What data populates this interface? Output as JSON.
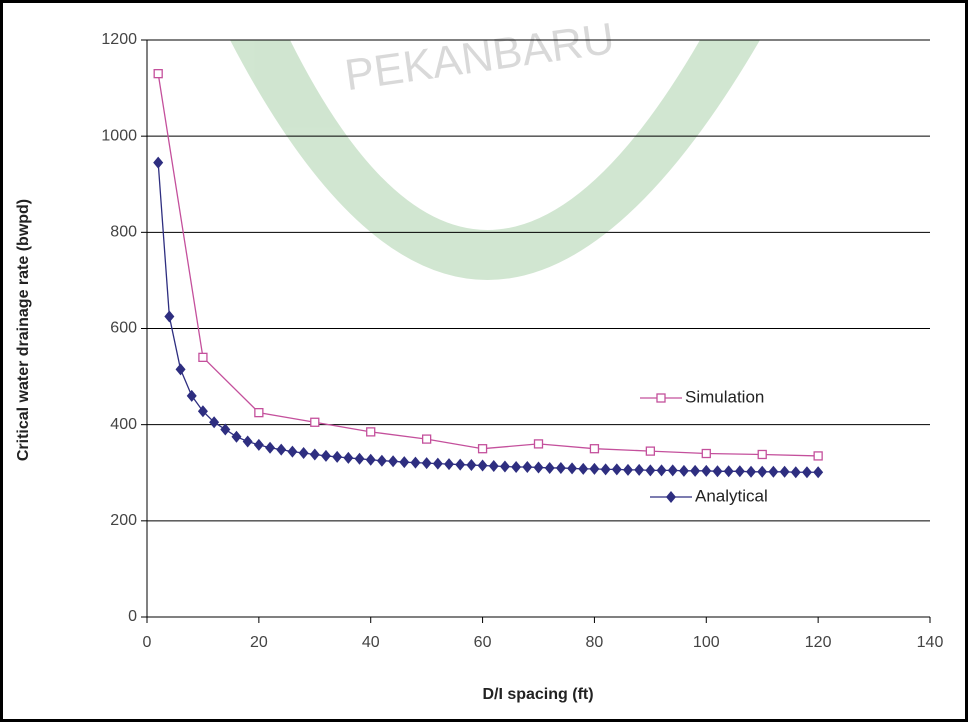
{
  "watermark": "PEKANBARU",
  "chart_data": {
    "type": "line",
    "xlabel": "D/I spacing (ft)",
    "ylabel": "Critical water drainage rate (bwpd)",
    "xlim": [
      0,
      140
    ],
    "xticks": [
      0,
      20,
      40,
      60,
      80,
      100,
      120,
      140
    ],
    "ylim": [
      0,
      1200
    ],
    "yticks": [
      0,
      200,
      400,
      600,
      800,
      1000,
      1200
    ],
    "grid": true,
    "series": [
      {
        "name": "Simulation",
        "color": "#c4509c",
        "marker": "square",
        "x": [
          2,
          10,
          20,
          30,
          40,
          50,
          60,
          70,
          80,
          90,
          100,
          110,
          120
        ],
        "values": [
          1130,
          540,
          425,
          405,
          385,
          370,
          350,
          360,
          350,
          345,
          340,
          338,
          335
        ]
      },
      {
        "name": "Analytical",
        "color": "#2e2e80",
        "marker": "diamond",
        "x": [
          2,
          4,
          6,
          8,
          10,
          12,
          14,
          16,
          18,
          20,
          22,
          24,
          26,
          28,
          30,
          32,
          34,
          36,
          38,
          40,
          42,
          44,
          46,
          48,
          50,
          52,
          54,
          56,
          58,
          60,
          62,
          64,
          66,
          68,
          70,
          72,
          74,
          76,
          78,
          80,
          82,
          84,
          86,
          88,
          90,
          92,
          94,
          96,
          98,
          100,
          102,
          104,
          106,
          108,
          110,
          112,
          114,
          116,
          118,
          120
        ],
        "values": [
          945,
          625,
          515,
          460,
          428,
          405,
          390,
          375,
          365,
          358,
          352,
          348,
          344,
          341,
          338,
          335,
          333,
          331,
          329,
          327,
          325,
          324,
          322,
          321,
          320,
          319,
          318,
          317,
          316,
          315,
          314,
          313,
          312,
          312,
          311,
          310,
          310,
          309,
          308,
          308,
          307,
          307,
          306,
          306,
          305,
          305,
          305,
          304,
          304,
          304,
          303,
          303,
          303,
          302,
          302,
          302,
          302,
          301,
          301,
          301
        ]
      }
    ]
  }
}
